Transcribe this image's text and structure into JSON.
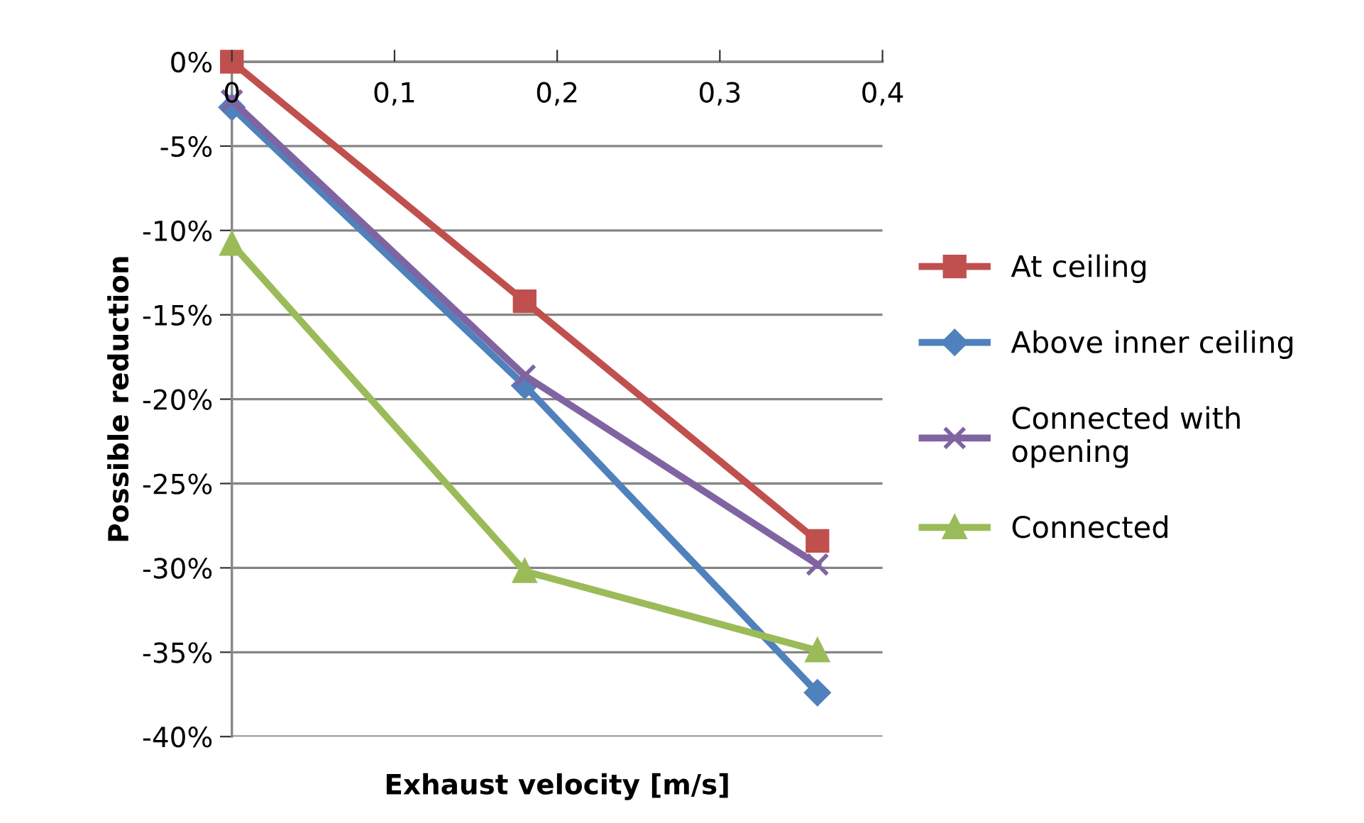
{
  "chart_data": {
    "type": "line",
    "xlabel": "Exhaust velocity [m/s]",
    "ylabel": "Possible reduction",
    "x": [
      0,
      0.18,
      0.36
    ],
    "series": [
      {
        "name": "At ceiling",
        "color": "#c0504d",
        "marker": "square",
        "values": [
          0,
          -14.2,
          -28.4
        ]
      },
      {
        "name": "Above inner ceiling",
        "color": "#4f81bd",
        "marker": "diamond",
        "values": [
          -2.7,
          -19.2,
          -37.4
        ]
      },
      {
        "name": "Connected with opening",
        "color": "#8064a2",
        "marker": "cross",
        "values": [
          -2.3,
          -18.6,
          -29.8
        ]
      },
      {
        "name": "Connected",
        "color": "#9bbb59",
        "marker": "triangle",
        "values": [
          -10.8,
          -30.2,
          -34.9
        ]
      }
    ],
    "xlim": [
      0,
      0.4
    ],
    "xticks": [
      0,
      {
        "value": 0.1,
        "label": "0,1"
      },
      {
        "value": 0.2,
        "label": "0,2"
      },
      {
        "value": 0.3,
        "label": "0,3"
      },
      {
        "value": 0.4,
        "label": "0,4"
      }
    ],
    "ylim": [
      -40,
      0
    ],
    "yticks": [
      {
        "value": 0,
        "label": "0%"
      },
      {
        "value": -5,
        "label": "-5%"
      },
      {
        "value": -10,
        "label": "-10%"
      },
      {
        "value": -15,
        "label": "-15%"
      },
      {
        "value": -20,
        "label": "-20%"
      },
      {
        "value": -25,
        "label": "-25%"
      },
      {
        "value": -30,
        "label": "-30%"
      },
      {
        "value": -35,
        "label": "-35%"
      },
      {
        "value": -40,
        "label": "-40%"
      }
    ],
    "grid": "y",
    "legend": "right",
    "line_style": "solid"
  }
}
